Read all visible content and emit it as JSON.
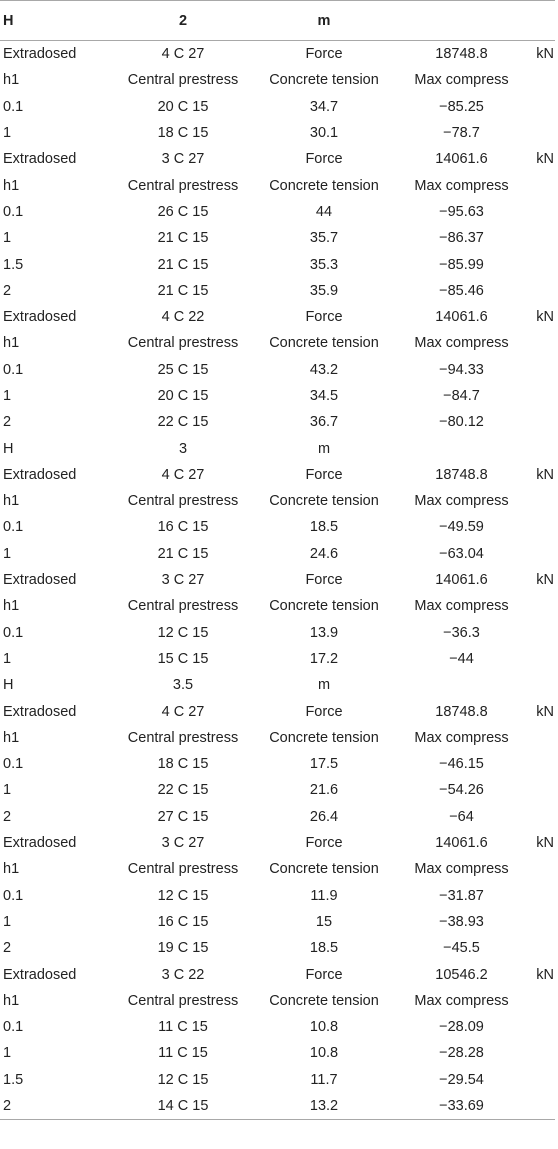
{
  "header": [
    "H",
    "2",
    "m",
    "",
    ""
  ],
  "rows": [
    [
      "Extradosed",
      "4 C 27",
      "Force",
      "18748.8",
      "kN"
    ],
    [
      "h1",
      "Central prestress",
      "Concrete tension",
      "Max compress",
      ""
    ],
    [
      "0.1",
      "20 C 15",
      "34.7",
      "−85.25",
      ""
    ],
    [
      "1",
      "18 C 15",
      "30.1",
      "−78.7",
      ""
    ],
    [
      "Extradosed",
      "3 C 27",
      "Force",
      "14061.6",
      "kN"
    ],
    [
      "h1",
      "Central prestress",
      "Concrete tension",
      "Max compress",
      ""
    ],
    [
      "0.1",
      "26 C 15",
      "44",
      "−95.63",
      ""
    ],
    [
      "1",
      "21 C 15",
      "35.7",
      "−86.37",
      ""
    ],
    [
      "1.5",
      "21 C 15",
      "35.3",
      "−85.99",
      ""
    ],
    [
      "2",
      "21 C 15",
      "35.9",
      "−85.46",
      ""
    ],
    [
      "Extradosed",
      "4 C 22",
      "Force",
      "14061.6",
      "kN"
    ],
    [
      "h1",
      "Central prestress",
      "Concrete tension",
      "Max compress",
      ""
    ],
    [
      "0.1",
      "25 C 15",
      "43.2",
      "−94.33",
      ""
    ],
    [
      "1",
      "20 C 15",
      "34.5",
      "−84.7",
      ""
    ],
    [
      "2",
      "22 C 15",
      "36.7",
      "−80.12",
      ""
    ],
    [
      "H",
      "3",
      "m",
      "",
      ""
    ],
    [
      "Extradosed",
      "4 C 27",
      "Force",
      "18748.8",
      "kN"
    ],
    [
      "h1",
      "Central prestress",
      "Concrete tension",
      "Max compress",
      ""
    ],
    [
      "0.1",
      "16 C 15",
      "18.5",
      "−49.59",
      ""
    ],
    [
      "1",
      "21 C 15",
      "24.6",
      "−63.04",
      ""
    ],
    [
      "Extradosed",
      "3 C 27",
      "Force",
      "14061.6",
      "kN"
    ],
    [
      "h1",
      "Central prestress",
      "Concrete tension",
      "Max compress",
      ""
    ],
    [
      "0.1",
      "12 C 15",
      "13.9",
      "−36.3",
      ""
    ],
    [
      "1",
      "15 C 15",
      "17.2",
      "−44",
      ""
    ],
    [
      "H",
      "3.5",
      "m",
      "",
      ""
    ],
    [
      "Extradosed",
      "4 C 27",
      "Force",
      "18748.8",
      "kN"
    ],
    [
      "h1",
      "Central prestress",
      "Concrete tension",
      "Max compress",
      ""
    ],
    [
      "0.1",
      "18 C 15",
      "17.5",
      "−46.15",
      ""
    ],
    [
      "1",
      "22 C 15",
      "21.6",
      "−54.26",
      ""
    ],
    [
      "2",
      "27 C 15",
      "26.4",
      "−64",
      ""
    ],
    [
      "Extradosed",
      "3 C 27",
      "Force",
      "14061.6",
      "kN"
    ],
    [
      "h1",
      "Central prestress",
      "Concrete tension",
      "Max compress",
      ""
    ],
    [
      "0.1",
      "12 C 15",
      "11.9",
      "−31.87",
      ""
    ],
    [
      "1",
      "16 C 15",
      "15",
      "−38.93",
      ""
    ],
    [
      "2",
      "19 C 15",
      "18.5",
      "−45.5",
      ""
    ],
    [
      "Extradosed",
      "3 C 22",
      "Force",
      "10546.2",
      "kN"
    ],
    [
      "h1",
      "Central prestress",
      "Concrete tension",
      "Max compress",
      ""
    ],
    [
      "0.1",
      "11 C 15",
      "10.8",
      "−28.09",
      ""
    ],
    [
      "1",
      "11 C 15",
      "10.8",
      "−28.28",
      ""
    ],
    [
      "1.5",
      "12 C 15",
      "11.7",
      "−29.54",
      ""
    ],
    [
      "2",
      "14 C 15",
      "13.2",
      "−33.69",
      ""
    ]
  ]
}
